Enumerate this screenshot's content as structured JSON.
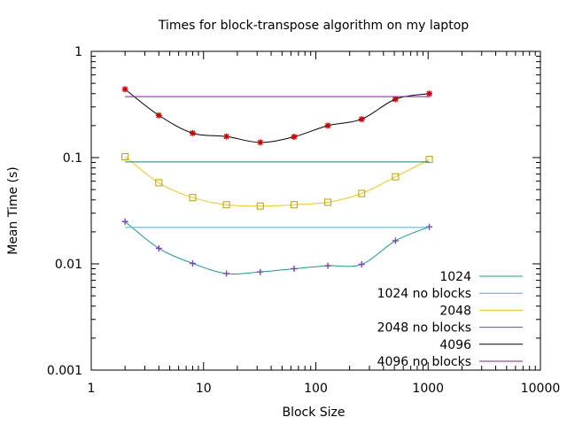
{
  "chart_data": {
    "type": "line",
    "title": "Times for block-transpose algorithm on my laptop",
    "xlabel": "Block Size",
    "ylabel": "Mean Time (s)",
    "xscale": "log",
    "yscale": "log",
    "xlim": [
      1,
      10000
    ],
    "ylim": [
      0.001,
      1
    ],
    "xticks": [
      {
        "value": 1,
        "label": "1"
      },
      {
        "value": 10,
        "label": "10"
      },
      {
        "value": 100,
        "label": "100"
      },
      {
        "value": 1000,
        "label": "1000"
      },
      {
        "value": 10000,
        "label": "10000"
      }
    ],
    "yticks": [
      {
        "value": 0.001,
        "label": "0.001"
      },
      {
        "value": 0.01,
        "label": "0.01"
      },
      {
        "value": 0.1,
        "label": "0.1"
      },
      {
        "value": 1,
        "label": "1"
      }
    ],
    "grid": false,
    "legend_position": "bottom-right",
    "x": [
      2,
      4,
      8,
      16,
      32,
      64,
      128,
      256,
      512,
      1024
    ],
    "series": [
      {
        "name": "1024",
        "style": "marked",
        "marker": "plus",
        "marker_color": "#7f3fbf",
        "color": "#1a9a8a",
        "values": [
          0.025,
          0.014,
          0.0101,
          0.0081,
          0.0084,
          0.009,
          0.0096,
          0.0099,
          0.0165,
          0.0223
        ]
      },
      {
        "name": "1024 no blocks",
        "style": "flat",
        "color": "#4ab0c8",
        "range": [
          2,
          1024
        ],
        "value": 0.022
      },
      {
        "name": "2048",
        "style": "marked",
        "marker": "square",
        "marker_color": "#b8a000",
        "color": "#f5c518",
        "values": [
          0.102,
          0.058,
          0.042,
          0.036,
          0.035,
          0.036,
          0.038,
          0.046,
          0.066,
          0.096
        ]
      },
      {
        "name": "2048 no blocks",
        "style": "flat",
        "color": "#1a7c8a",
        "range": [
          2,
          1024
        ],
        "value": 0.091
      },
      {
        "name": "4096",
        "style": "marked",
        "marker": "star",
        "marker_color": "#cc0000",
        "color": "#000000",
        "values": [
          0.44,
          0.25,
          0.17,
          0.158,
          0.139,
          0.157,
          0.2,
          0.23,
          0.355,
          0.4
        ]
      },
      {
        "name": "4096 no blocks",
        "style": "flat",
        "color": "#8b1a9a",
        "range": [
          2,
          1024
        ],
        "value": 0.375
      }
    ]
  }
}
